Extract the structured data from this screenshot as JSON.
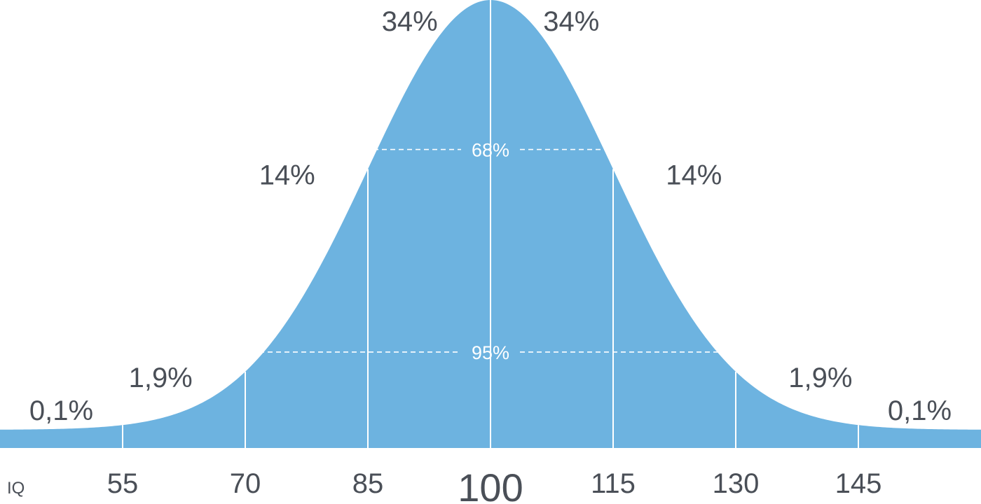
{
  "chart_data": {
    "type": "area",
    "title": "",
    "xlabel": "IQ",
    "ylabel": "",
    "mean": 100,
    "sd": 15,
    "xlim": [
      40,
      160
    ],
    "x_ticks": [
      "55",
      "70",
      "85",
      "100",
      "115",
      "130",
      "145"
    ],
    "x_tick_values": [
      55,
      70,
      85,
      100,
      115,
      130,
      145
    ],
    "segments": [
      {
        "range": [
          40,
          55
        ],
        "label": "0,1%"
      },
      {
        "range": [
          55,
          70
        ],
        "label": "1,9%"
      },
      {
        "range": [
          70,
          85
        ],
        "label": "14%"
      },
      {
        "range": [
          85,
          100
        ],
        "label": "34%"
      },
      {
        "range": [
          100,
          115
        ],
        "label": "34%"
      },
      {
        "range": [
          115,
          130
        ],
        "label": "14%"
      },
      {
        "range": [
          130,
          145
        ],
        "label": "1,9%"
      },
      {
        "range": [
          145,
          160
        ],
        "label": "0,1%"
      }
    ],
    "intervals": [
      {
        "range": [
          85,
          115
        ],
        "label": "68%"
      },
      {
        "range": [
          70,
          130
        ],
        "label": "95%"
      }
    ],
    "grid": false,
    "legend": "none",
    "colors": {
      "fill": "#6db3e0",
      "text": "#4a4f57",
      "divider": "#ffffff"
    }
  }
}
